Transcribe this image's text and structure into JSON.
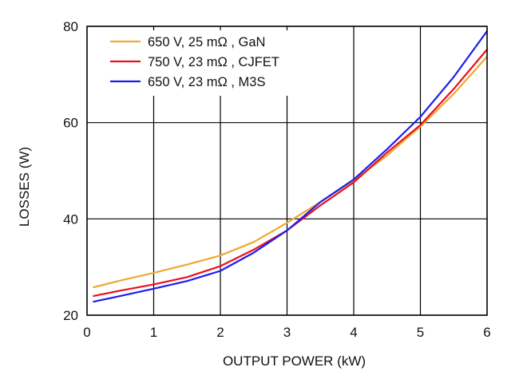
{
  "chart_data": {
    "type": "line",
    "title": "",
    "xlabel": "OUTPUT POWER (kW)",
    "ylabel": "LOSSES (W)",
    "xlim": [
      0,
      6
    ],
    "ylim": [
      20,
      80
    ],
    "xticks": [
      0,
      1,
      2,
      3,
      4,
      5,
      6
    ],
    "yticks": [
      20,
      40,
      60,
      80
    ],
    "ygrid": [
      20,
      40,
      60,
      80
    ],
    "grid": true,
    "legend_position": "top-left",
    "series": [
      {
        "name": "650 V, 25 mΩ , GaN",
        "color": "#f0a830",
        "x": [
          0.1,
          0.5,
          1.0,
          1.5,
          2.0,
          2.5,
          3.0,
          3.5,
          4.0,
          4.5,
          5.0,
          5.5,
          6.0
        ],
        "y": [
          25.8,
          27.2,
          28.8,
          30.5,
          32.4,
          35.2,
          39.2,
          43.5,
          48.0,
          53.2,
          59.2,
          66.0,
          73.7
        ]
      },
      {
        "name": "750 V, 23 mΩ , CJFET",
        "color": "#e8101c",
        "x": [
          0.1,
          0.5,
          1.0,
          1.5,
          2.0,
          2.5,
          3.0,
          3.5,
          4.0,
          4.5,
          5.0,
          5.5,
          6.0
        ],
        "y": [
          24.0,
          25.1,
          26.4,
          27.9,
          30.2,
          33.6,
          37.6,
          42.8,
          47.6,
          53.8,
          59.5,
          67.0,
          75.2
        ]
      },
      {
        "name": "650 V, 23 mΩ , M3S",
        "color": "#1c1cf0",
        "x": [
          0.1,
          0.5,
          1.0,
          1.5,
          2.0,
          2.5,
          3.0,
          3.5,
          4.0,
          4.5,
          5.0,
          5.5,
          6.0
        ],
        "y": [
          22.8,
          24.0,
          25.5,
          27.1,
          29.2,
          33.0,
          37.6,
          43.5,
          48.2,
          54.5,
          61.2,
          69.5,
          79.0
        ]
      }
    ]
  }
}
